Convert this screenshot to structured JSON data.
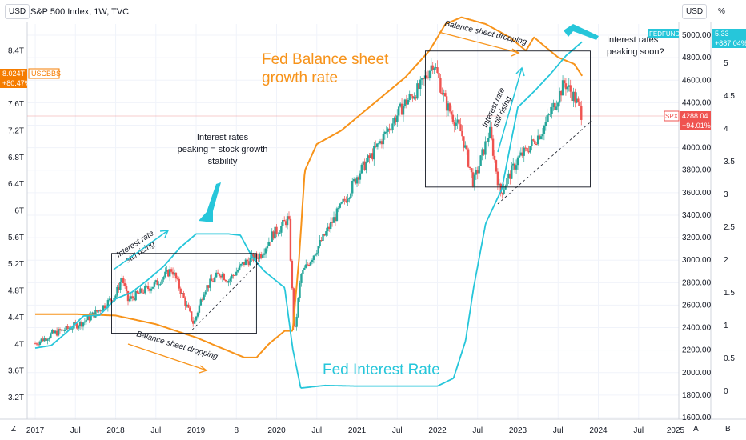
{
  "header": {
    "currency_left": "USD",
    "title": "S&P 500 Index, 1W, TVC",
    "currency_right": "USD",
    "percent_symbol": "%"
  },
  "footer": {
    "left_btn": "Z",
    "auto_btn": "A",
    "b_btn": "B"
  },
  "colors": {
    "spx_up": "#26a69a",
    "spx_down": "#ef5350",
    "balance_sheet": "#f7931a",
    "fedfunds": "#26c6da",
    "spx_badge": "#ef5350",
    "uscbbs_badge": "#f57c00"
  },
  "badges": {
    "uscbbs_value": "8.024T",
    "uscbbs_change": "+80.47%",
    "uscbbs_name": "USCBBS",
    "spx_name": "SPX",
    "spx_value": "4288.04",
    "spx_change": "+94.01%",
    "fedfunds_name": "FEDFUNDS",
    "fedfunds_value": "5.33",
    "fedfunds_change": "+887.04%"
  },
  "annotations": {
    "balance_title_1": "Fed Balance sheet",
    "balance_title_2": "growth rate",
    "fed_rate_title": "Fed Interest Rate",
    "peak_note_1": "Interest rates",
    "peak_note_2": "peaking = stock growth",
    "peak_note_3": "stability",
    "rising_1a": "Interest rate",
    "rising_1b": "still rising",
    "rising_2a": "Interest rate",
    "rising_2b": "still rising",
    "dropping_1": "Balance sheet dropping",
    "dropping_2": "Balance sheet dropping",
    "peaking_soon_1": "Interest rates",
    "peaking_soon_2": "peaking soon?"
  },
  "chart_data": {
    "type": "line",
    "title": "S&P 500 Index, 1W, TVC",
    "x_ticks": [
      "2017",
      "Jul",
      "2018",
      "Jul",
      "2019",
      "8",
      "2020",
      "Jul",
      "2021",
      "Jul",
      "2022",
      "Jul",
      "2023",
      "Jul",
      "2024",
      "Jul",
      "2025"
    ],
    "right_axis_price_ticks": [
      "5000.00",
      "4800.00",
      "4600.00",
      "4400.00",
      "4200.00",
      "4000.00",
      "3800.00",
      "3600.00",
      "3400.00",
      "3200.00",
      "3000.00",
      "2800.00",
      "2600.00",
      "2400.00",
      "2200.00",
      "2000.00",
      "1800.00",
      "1600.00"
    ],
    "left_axis_balance_ticks": [
      "8.4T",
      "8T",
      "7.6T",
      "7.2T",
      "6.8T",
      "6.4T",
      "6T",
      "5.6T",
      "5.2T",
      "4.8T",
      "4.4T",
      "4T",
      "3.6T",
      "3.2T"
    ],
    "percent_axis_ticks": [
      "5",
      "4.5",
      "4",
      "3.5",
      "3",
      "2.5",
      "2",
      "1.5",
      "1",
      "0.5",
      "0"
    ],
    "price_range": [
      1600,
      5100
    ],
    "balance_range": [
      2.9,
      8.8
    ],
    "rate_range": [
      -0.4,
      5.6
    ],
    "series": [
      {
        "name": "SPX",
        "x": [
          2017.0,
          2017.2,
          2017.4,
          2017.6,
          2017.8,
          2018.0,
          2018.08,
          2018.15,
          2018.3,
          2018.5,
          2018.7,
          2018.8,
          2018.97,
          2019.1,
          2019.3,
          2019.4,
          2019.6,
          2019.8,
          2019.95,
          2020.05,
          2020.15,
          2020.22,
          2020.3,
          2020.5,
          2020.7,
          2020.9,
          2021.0,
          2021.2,
          2021.4,
          2021.6,
          2021.8,
          2021.95,
          2022.1,
          2022.3,
          2022.45,
          2022.55,
          2022.65,
          2022.78,
          2023.0,
          2023.1,
          2023.3,
          2023.5,
          2023.58,
          2023.7,
          2023.8
        ],
        "values": [
          2260,
          2340,
          2390,
          2450,
          2560,
          2690,
          2850,
          2640,
          2710,
          2790,
          2920,
          2740,
          2430,
          2740,
          2890,
          2820,
          2980,
          3050,
          3230,
          3290,
          3380,
          2300,
          2860,
          3100,
          3350,
          3600,
          3750,
          3950,
          4180,
          4400,
          4550,
          4770,
          4400,
          4130,
          3680,
          3920,
          4150,
          3590,
          3900,
          3970,
          4150,
          4450,
          4580,
          4450,
          4288
        ]
      },
      {
        "name": "USCBBS",
        "x": [
          2017.0,
          2017.5,
          2018.0,
          2018.5,
          2019.0,
          2019.3,
          2019.6,
          2019.75,
          2019.9,
          2020.1,
          2020.2,
          2020.28,
          2020.35,
          2020.5,
          2020.8,
          2021.0,
          2021.3,
          2021.6,
          2021.9,
          2022.1,
          2022.3,
          2022.6,
          2022.9,
          2023.1,
          2023.2,
          2023.3,
          2023.5,
          2023.7,
          2023.8
        ],
        "values": [
          4.45,
          4.45,
          4.43,
          4.3,
          4.1,
          3.95,
          3.8,
          3.8,
          4.0,
          4.2,
          4.2,
          5.3,
          6.6,
          7.0,
          7.2,
          7.4,
          7.7,
          8.0,
          8.4,
          8.8,
          8.9,
          8.8,
          8.6,
          8.4,
          8.6,
          8.5,
          8.3,
          8.2,
          8.02
        ]
      },
      {
        "name": "FEDFUNDS",
        "x": [
          2017.0,
          2017.2,
          2017.4,
          2017.6,
          2017.8,
          2018.0,
          2018.2,
          2018.4,
          2018.6,
          2018.8,
          2019.0,
          2019.4,
          2019.55,
          2019.7,
          2019.85,
          2020.1,
          2020.2,
          2020.3,
          2020.6,
          2021.0,
          2021.5,
          2022.0,
          2022.2,
          2022.35,
          2022.45,
          2022.6,
          2022.8,
          2023.0,
          2023.2,
          2023.4,
          2023.6,
          2023.8
        ],
        "values": [
          0.66,
          0.7,
          0.91,
          1.15,
          1.16,
          1.41,
          1.51,
          1.7,
          1.91,
          2.19,
          2.4,
          2.4,
          2.38,
          2.04,
          1.83,
          1.58,
          0.65,
          0.05,
          0.09,
          0.08,
          0.08,
          0.08,
          0.2,
          0.77,
          1.58,
          2.56,
          3.08,
          4.33,
          4.57,
          4.83,
          5.12,
          5.33
        ]
      }
    ]
  }
}
